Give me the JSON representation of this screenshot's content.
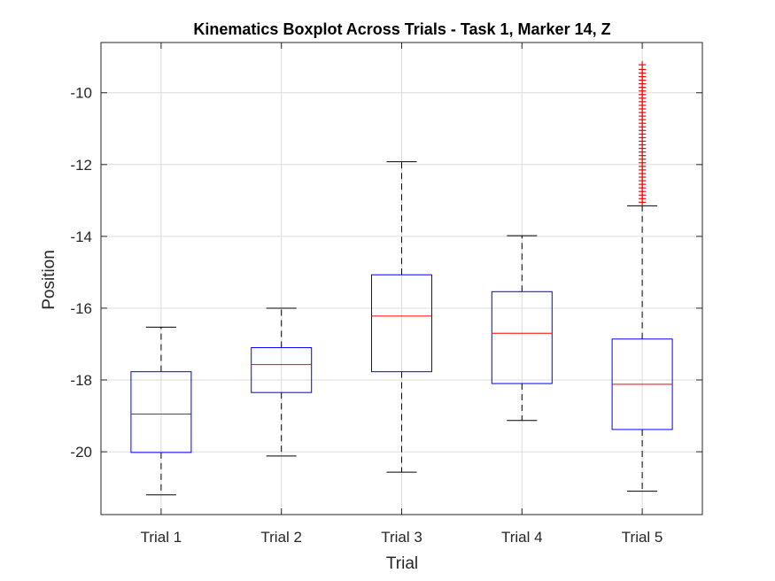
{
  "chart_data": {
    "type": "boxplot",
    "title": "Kinematics Boxplot Across Trials - Task 1, Marker 14, Z",
    "xlabel": "Trial",
    "ylabel": "Position",
    "categories": [
      "Trial 1",
      "Trial 2",
      "Trial 3",
      "Trial 4",
      "Trial 5"
    ],
    "ylim": [
      -21.75,
      -8.6
    ],
    "yticks": [
      -20,
      -18,
      -16,
      -14,
      -12,
      -10
    ],
    "ytick_labels": [
      "-20",
      "-18",
      "-16",
      "-14",
      "-12",
      "-10"
    ],
    "grid": true,
    "boxes": [
      {
        "category": "Trial 1",
        "whisker_low": -21.2,
        "q1": -20.02,
        "median": -18.95,
        "q3": -17.77,
        "whisker_high": -16.53,
        "outliers": []
      },
      {
        "category": "Trial 2",
        "whisker_low": -20.12,
        "q1": -18.35,
        "median": -17.57,
        "q3": -17.1,
        "whisker_high": -16.0,
        "outliers": []
      },
      {
        "category": "Trial 3",
        "whisker_low": -20.57,
        "q1": -17.77,
        "median": -16.22,
        "q3": -15.07,
        "whisker_high": -11.92,
        "outliers": []
      },
      {
        "category": "Trial 4",
        "whisker_low": -19.13,
        "q1": -18.1,
        "median": -16.7,
        "q3": -15.54,
        "whisker_high": -13.98,
        "outliers": []
      },
      {
        "category": "Trial 5",
        "whisker_low": -21.1,
        "q1": -19.38,
        "median": -18.12,
        "q3": -16.86,
        "whisker_high": -13.15,
        "outliers": [
          -13.05,
          -12.95,
          -12.85,
          -12.75,
          -12.65,
          -12.55,
          -12.45,
          -12.35,
          -12.25,
          -12.15,
          -12.05,
          -11.95,
          -11.85,
          -11.75,
          -11.65,
          -11.55,
          -11.45,
          -11.35,
          -11.25,
          -11.15,
          -11.05,
          -10.95,
          -10.85,
          -10.75,
          -10.65,
          -10.55,
          -10.45,
          -10.35,
          -10.25,
          -10.15,
          -10.05,
          -9.95,
          -9.85,
          -9.75,
          -9.65,
          -9.55,
          -9.45,
          -9.35,
          -9.22
        ]
      }
    ],
    "colors": {
      "box": "#0000ff",
      "median": "#ff0000",
      "whisker": "#000000",
      "outlier": "#ff0000",
      "grid": "#dcdcdc",
      "axis": "#262626"
    }
  }
}
